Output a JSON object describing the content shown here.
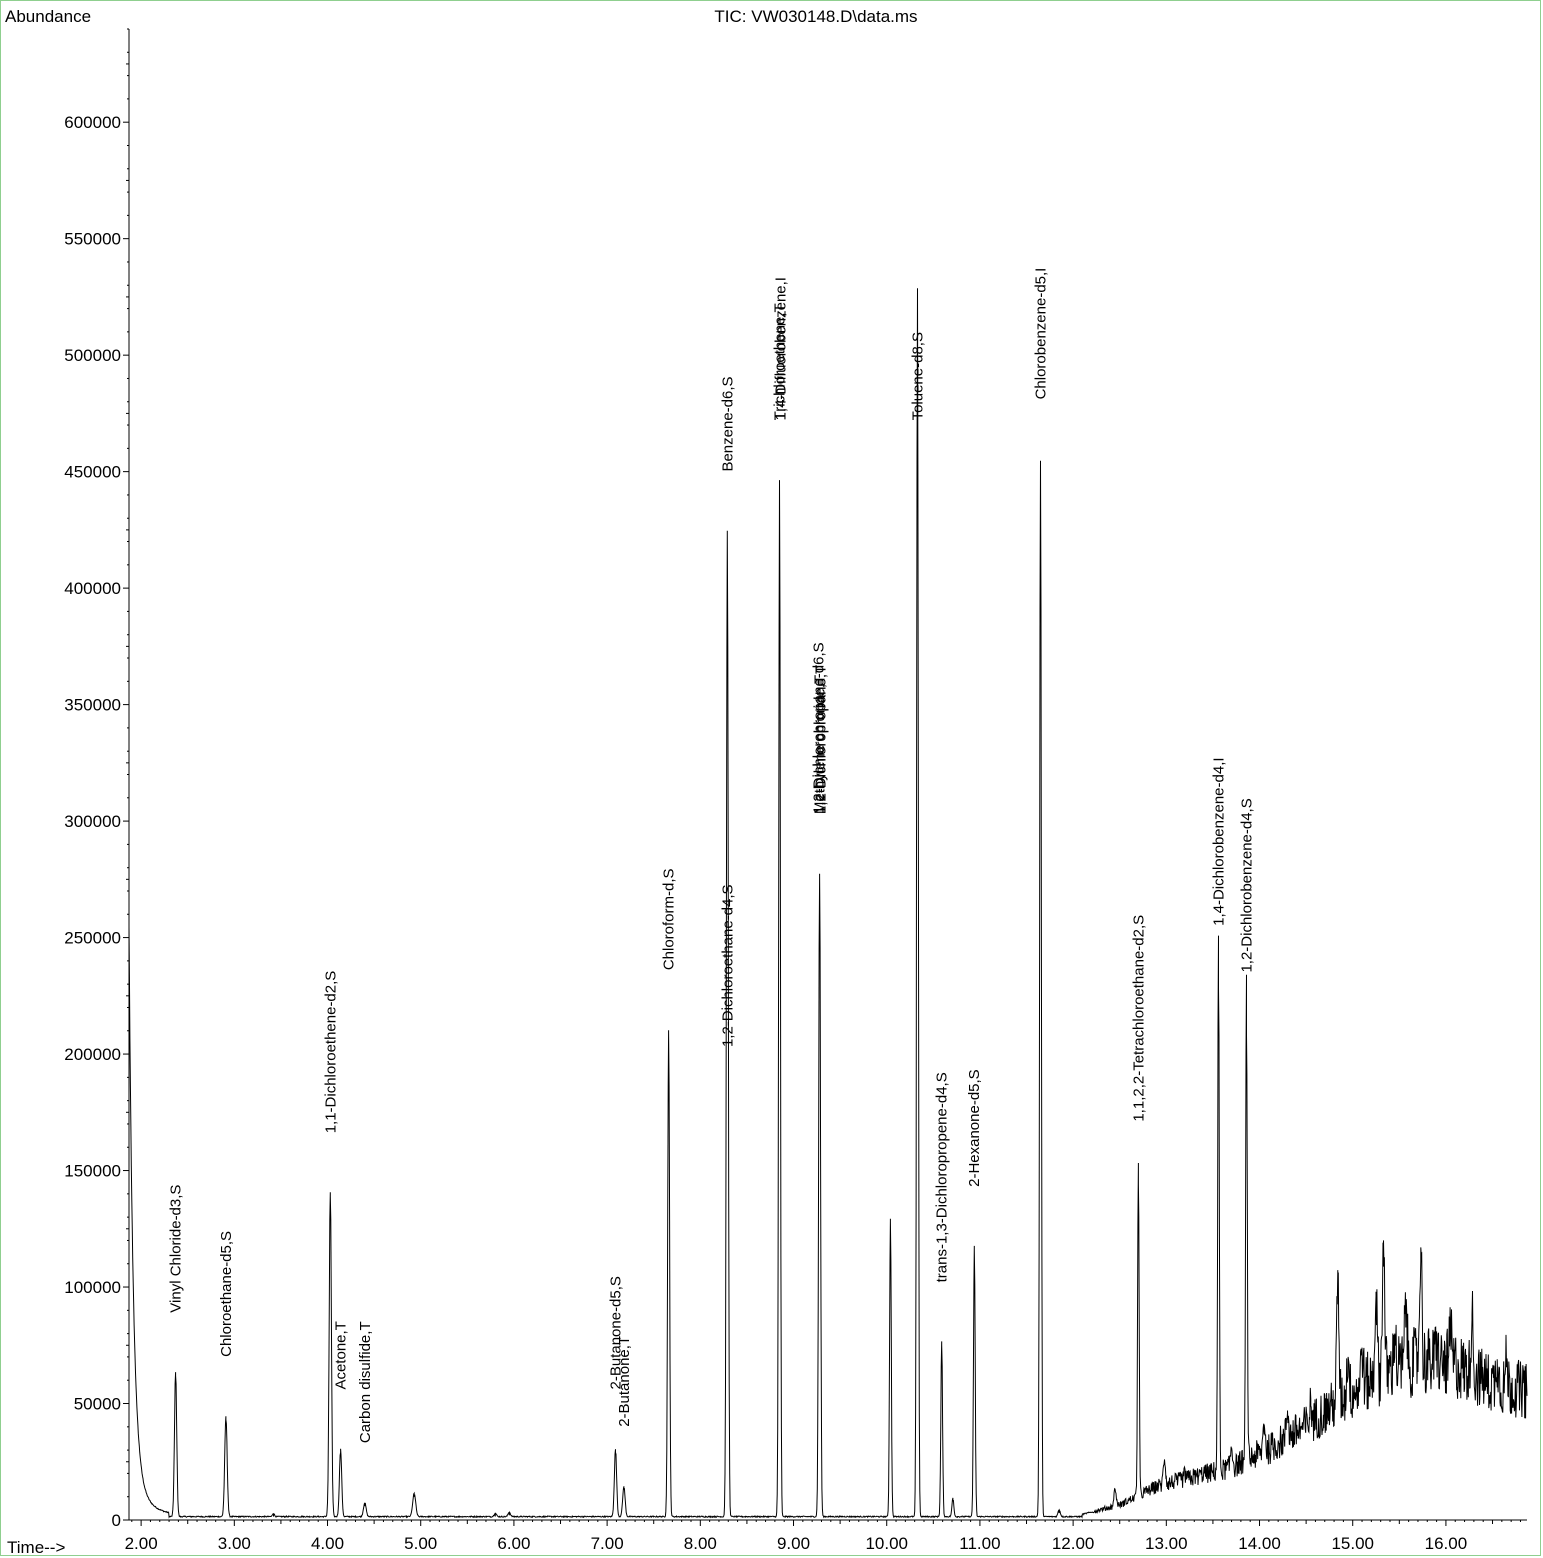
{
  "chart_data": {
    "type": "line",
    "title": "TIC: VW030148.D\\data.ms",
    "ylabel": "Abundance",
    "xlabel": "Time-->",
    "xlim": [
      1.87,
      16.87
    ],
    "ylim": [
      0,
      640000
    ],
    "x_ticks": [
      2.0,
      3.0,
      4.0,
      5.0,
      6.0,
      7.0,
      8.0,
      9.0,
      10.0,
      11.0,
      12.0,
      13.0,
      14.0,
      15.0,
      16.0
    ],
    "x_tick_labels": [
      "2.00",
      "3.00",
      "4.00",
      "5.00",
      "6.00",
      "7.00",
      "8.00",
      "9.00",
      "10.00",
      "11.00",
      "12.00",
      "13.00",
      "14.00",
      "15.00",
      "16.00"
    ],
    "y_ticks": [
      0,
      50000,
      100000,
      150000,
      200000,
      250000,
      300000,
      350000,
      400000,
      450000,
      500000,
      550000,
      600000
    ],
    "y_tick_labels": [
      "0",
      "50000",
      "100000",
      "150000",
      "200000",
      "250000",
      "300000",
      "350000",
      "400000",
      "450000",
      "500000",
      "550000",
      "600000"
    ],
    "peaks": [
      {
        "rt": 2.37,
        "height": 62000,
        "width": 0.012
      },
      {
        "rt": 2.91,
        "height": 43000,
        "width": 0.013
      },
      {
        "rt": 3.42,
        "height": 1500,
        "width": 0.01
      },
      {
        "rt": 4.03,
        "height": 139000,
        "width": 0.012
      },
      {
        "rt": 4.14,
        "height": 29000,
        "width": 0.012
      },
      {
        "rt": 4.4,
        "height": 6000,
        "width": 0.014
      },
      {
        "rt": 4.93,
        "height": 10000,
        "width": 0.016
      },
      {
        "rt": 5.8,
        "height": 1500,
        "width": 0.012
      },
      {
        "rt": 5.95,
        "height": 2000,
        "width": 0.012
      },
      {
        "rt": 7.09,
        "height": 29000,
        "width": 0.012
      },
      {
        "rt": 7.18,
        "height": 13000,
        "width": 0.013
      },
      {
        "rt": 7.66,
        "height": 209000,
        "width": 0.01
      },
      {
        "rt": 8.29,
        "height": 423000,
        "width": 0.01
      },
      {
        "rt": 8.85,
        "height": 445000,
        "width": 0.009
      },
      {
        "rt": 9.28,
        "height": 276000,
        "width": 0.01
      },
      {
        "rt": 10.04,
        "height": 128000,
        "width": 0.009
      },
      {
        "rt": 10.33,
        "height": 527000,
        "width": 0.009
      },
      {
        "rt": 10.59,
        "height": 75000,
        "width": 0.009
      },
      {
        "rt": 10.71,
        "height": 8000,
        "width": 0.01
      },
      {
        "rt": 10.94,
        "height": 116000,
        "width": 0.009
      },
      {
        "rt": 11.65,
        "height": 453000,
        "width": 0.009
      },
      {
        "rt": 11.85,
        "height": 3000,
        "width": 0.012
      },
      {
        "rt": 12.7,
        "height": 144000,
        "width": 0.008
      },
      {
        "rt": 13.56,
        "height": 228000,
        "width": 0.008
      },
      {
        "rt": 13.86,
        "height": 208000,
        "width": 0.008
      }
    ],
    "baseline_noise": [
      {
        "rt": 12.1,
        "level": 2000
      },
      {
        "rt": 12.5,
        "level": 6000
      },
      {
        "rt": 12.9,
        "level": 14000
      },
      {
        "rt": 13.3,
        "level": 18000
      },
      {
        "rt": 13.7,
        "level": 22000
      },
      {
        "rt": 14.1,
        "level": 30000
      },
      {
        "rt": 14.5,
        "level": 40000
      },
      {
        "rt": 14.9,
        "level": 52000
      },
      {
        "rt": 15.3,
        "level": 62000
      },
      {
        "rt": 15.7,
        "level": 68000
      },
      {
        "rt": 16.1,
        "level": 66000
      },
      {
        "rt": 16.5,
        "level": 58000
      },
      {
        "rt": 16.87,
        "level": 55000
      }
    ],
    "noise_spikes": [
      {
        "rt": 12.45,
        "height": 13000
      },
      {
        "rt": 12.98,
        "height": 26000
      },
      {
        "rt": 13.2,
        "height": 19000
      },
      {
        "rt": 13.4,
        "height": 20000
      },
      {
        "rt": 13.7,
        "height": 31000
      },
      {
        "rt": 14.05,
        "height": 41000
      },
      {
        "rt": 14.3,
        "height": 47000
      },
      {
        "rt": 14.55,
        "height": 49000
      },
      {
        "rt": 14.84,
        "height": 102000
      },
      {
        "rt": 14.95,
        "height": 70000
      },
      {
        "rt": 15.1,
        "height": 74000
      },
      {
        "rt": 15.25,
        "height": 98000
      },
      {
        "rt": 15.33,
        "height": 120000
      },
      {
        "rt": 15.45,
        "height": 80000
      },
      {
        "rt": 15.57,
        "height": 94000
      },
      {
        "rt": 15.73,
        "height": 117000
      },
      {
        "rt": 15.9,
        "height": 75000
      },
      {
        "rt": 16.05,
        "height": 80000
      },
      {
        "rt": 16.28,
        "height": 88000
      },
      {
        "rt": 16.55,
        "height": 69000
      },
      {
        "rt": 16.65,
        "height": 68000
      }
    ],
    "annotations": [
      {
        "text": "Vinyl Chloride-d3,S",
        "rt": 2.37,
        "y_bottom": 89000
      },
      {
        "text": "Chloroethane-d5,S",
        "rt": 2.91,
        "y_bottom": 70000
      },
      {
        "text": "1,1-Dichloroethene-d2,S",
        "rt": 4.03,
        "y_bottom": 166000
      },
      {
        "text": "Acetone,T",
        "rt": 4.14,
        "y_bottom": 56000
      },
      {
        "text": "Carbon disulfide,T",
        "rt": 4.4,
        "y_bottom": 33000
      },
      {
        "text": "2-Butanone-d5,S",
        "rt": 7.09,
        "y_bottom": 56000
      },
      {
        "text": "2-Butanone,T",
        "rt": 7.18,
        "y_bottom": 40000
      },
      {
        "text": "Chloroform-d,S",
        "rt": 7.66,
        "y_bottom": 236000
      },
      {
        "text": "Benzene-d6,S",
        "rt": 8.29,
        "y_bottom": 450000
      },
      {
        "text": "1,2-Dichloroethane-d4,S",
        "rt": 8.29,
        "y_bottom": 203000
      },
      {
        "text": "Trichloroethene,T",
        "rt": 8.85,
        "y_bottom": 472000
      },
      {
        "text": "1,4-Difluorobenzene,I",
        "rt": 8.86,
        "y_bottom": 472000
      },
      {
        "text": "1,2-Dichloropropane-d6,S",
        "rt": 9.27,
        "y_bottom": 303000
      },
      {
        "text": "Methylene chloride,T",
        "rt": 9.28,
        "y_bottom": 303000
      },
      {
        "text": "1,2-Dichloropropane,T",
        "rt": 9.29,
        "y_bottom": 303000
      },
      {
        "text": "Toluene-d8,S",
        "rt": 10.33,
        "y_bottom": 472000
      },
      {
        "text": "trans-1,3-Dichloropropene-d4,S",
        "rt": 10.59,
        "y_bottom": 102000
      },
      {
        "text": "2-Hexanone-d5,S",
        "rt": 10.94,
        "y_bottom": 143000
      },
      {
        "text": "Chlorobenzene-d5,I",
        "rt": 11.65,
        "y_bottom": 481000
      },
      {
        "text": "1,1,2,2-Tetrachloroethane-d2,S",
        "rt": 12.7,
        "y_bottom": 171000
      },
      {
        "text": "1,4-Dichlorobenzene-d4,I",
        "rt": 13.56,
        "y_bottom": 255000
      },
      {
        "text": "1,2-Dichlorobenzene-d4,S",
        "rt": 13.86,
        "y_bottom": 235000
      }
    ]
  }
}
